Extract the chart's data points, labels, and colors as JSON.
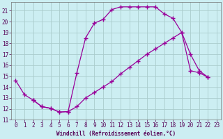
{
  "xlabel": "Windchill (Refroidissement éolien,°C)",
  "bg_color": "#cceef2",
  "grid_color": "#aacccc",
  "line_color": "#990099",
  "xlim": [
    -0.5,
    23.5
  ],
  "ylim": [
    11,
    21.8
  ],
  "xticks": [
    0,
    1,
    2,
    3,
    4,
    5,
    6,
    7,
    8,
    9,
    10,
    11,
    12,
    13,
    14,
    15,
    16,
    17,
    18,
    19,
    20,
    21,
    22,
    23
  ],
  "yticks": [
    11,
    12,
    13,
    14,
    15,
    16,
    17,
    18,
    19,
    20,
    21
  ],
  "curve1_x": [
    0,
    1,
    2,
    3,
    4,
    5,
    6,
    7,
    8,
    9,
    10,
    11,
    12,
    13,
    14,
    15,
    16,
    17,
    18,
    19,
    20,
    21,
    22
  ],
  "curve1_y": [
    14.6,
    13.3,
    12.8,
    12.2,
    12.05,
    11.7,
    11.75,
    15.3,
    18.5,
    19.85,
    20.2,
    21.1,
    21.35,
    21.35,
    21.35,
    21.35,
    21.35,
    20.7,
    20.3,
    19.0,
    17.0,
    15.5,
    14.9
  ],
  "curve2_x": [
    2,
    3,
    4,
    5,
    6,
    7,
    8,
    9,
    10,
    11,
    12,
    13,
    14,
    15,
    16,
    17,
    18,
    19,
    20,
    21,
    22
  ],
  "curve2_y": [
    12.8,
    12.2,
    12.05,
    11.7,
    11.75,
    12.2,
    13.0,
    13.5,
    14.0,
    14.5,
    15.2,
    15.8,
    16.4,
    17.0,
    17.5,
    18.0,
    18.5,
    19.0,
    15.5,
    15.3,
    14.9
  ]
}
